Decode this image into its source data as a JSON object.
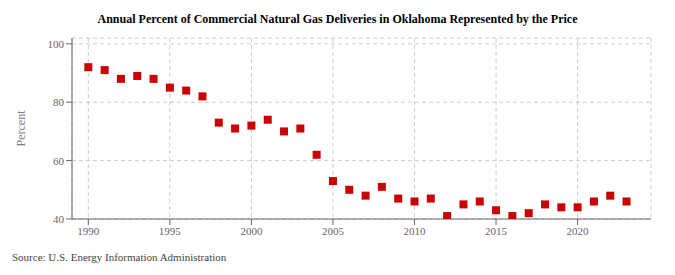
{
  "chart_data": {
    "type": "scatter",
    "title": "Annual Percent of Commercial Natural Gas Deliveries in Oklahoma Represented by the Price",
    "ylabel": "Percent",
    "annotations": [
      "Source: U.S. Energy Information Administration"
    ],
    "x": [
      1990,
      1991,
      1992,
      1993,
      1994,
      1995,
      1996,
      1997,
      1998,
      1999,
      2000,
      2001,
      2002,
      2003,
      2004,
      2005,
      2006,
      2007,
      2008,
      2009,
      2010,
      2011,
      2012,
      2013,
      2014,
      2015,
      2016,
      2017,
      2018,
      2019,
      2020,
      2021,
      2022,
      2023
    ],
    "values": [
      92,
      91,
      88,
      89,
      88,
      85,
      84,
      82,
      73,
      71,
      72,
      74,
      70,
      71,
      62,
      53,
      50,
      48,
      51,
      47,
      46,
      47,
      41,
      45,
      46,
      43,
      41,
      42,
      45,
      44,
      44,
      46,
      48,
      46
    ],
    "color": "#cc0000",
    "marker": "square",
    "xlim": [
      1989.0,
      2024.5
    ],
    "xticks": [
      1990,
      1995,
      2000,
      2005,
      2010,
      2015,
      2020
    ],
    "ylim": [
      40,
      102
    ],
    "yticks": [
      40,
      60,
      80,
      100
    ],
    "grid": true
  }
}
